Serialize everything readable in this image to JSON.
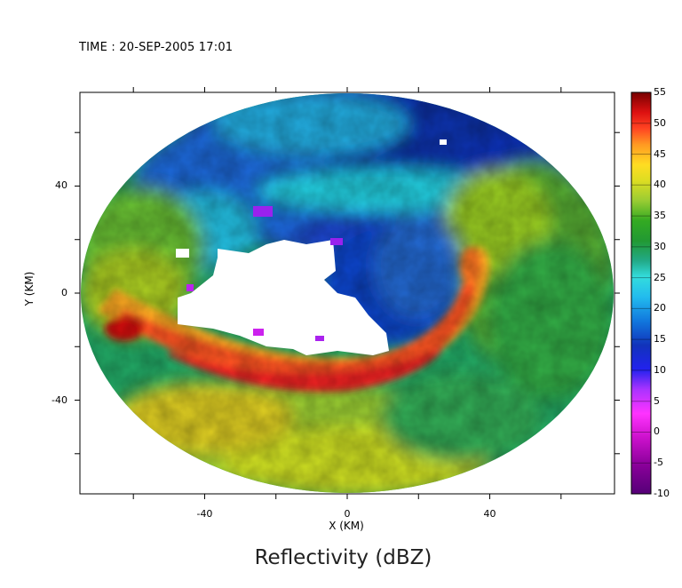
{
  "header": {
    "time_text": "TIME : 20-SEP-2005 17:01"
  },
  "chart_data": {
    "type": "heatmap",
    "title": "Reflectivity (dBZ)",
    "xlabel": "X (KM)",
    "ylabel": "Y (KM)",
    "xlim": [
      -75,
      75
    ],
    "ylim": [
      -75,
      75
    ],
    "x_ticks": [
      -40,
      0,
      40
    ],
    "y_ticks": [
      40,
      0,
      -40
    ],
    "radar_range_km": 75,
    "colorbar": {
      "min": -10,
      "max": 55,
      "ticks": [
        55,
        50,
        45,
        40,
        35,
        30,
        25,
        20,
        15,
        10,
        5,
        0,
        -5,
        -10
      ],
      "colors": [
        "#550088",
        "#9900cc",
        "#dd22dd",
        "#aa22ff",
        "#2222dd",
        "#1144cc",
        "#1188dd",
        "#22ccee",
        "#22ccaa",
        "#33aa55",
        "#228822",
        "#88cc33",
        "#ccdd22",
        "#f4e020",
        "#ffaa22",
        "#ff6622",
        "#ee2222",
        "#aa1111",
        "#660000"
      ]
    },
    "features": [
      {
        "name": "stratiform rain (outer region)",
        "dbz": 27
      },
      {
        "name": "eyewall band",
        "dbz": 45
      },
      {
        "name": "inner clear region",
        "dbz": 12
      },
      {
        "name": "eye (no echo)",
        "dbz": null
      }
    ]
  }
}
